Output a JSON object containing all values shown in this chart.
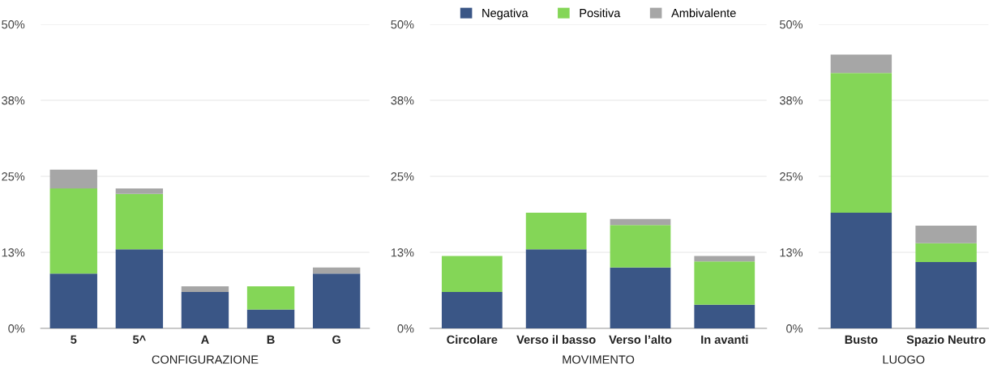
{
  "chart_data": [
    {
      "type": "bar",
      "stacked": true,
      "xlabel": "CONFIGURAZIONE",
      "categories": [
        "5",
        "5^",
        "A",
        "B",
        "G"
      ],
      "series": [
        {
          "color": "#3a5686",
          "values": [
            9.0,
            13.0,
            6.0,
            3.1,
            9.0
          ]
        },
        {
          "color": "#84d657",
          "values": [
            14.0,
            9.1,
            0,
            3.8,
            0
          ]
        },
        {
          "color": "#a6a6a6",
          "values": [
            3.1,
            0.9,
            0.9,
            0,
            1.0
          ]
        }
      ],
      "ylim": [
        0,
        50
      ],
      "yticks": [
        {
          "value": 0,
          "label": "0%"
        },
        {
          "value": 12.5,
          "label": "13%"
        },
        {
          "value": 25,
          "label": "25%"
        },
        {
          "value": 37.5,
          "label": "38%"
        },
        {
          "value": 50,
          "label": "50%"
        }
      ],
      "grid": "y",
      "legend": false
    },
    {
      "type": "bar",
      "stacked": true,
      "xlabel": "MOVIMENTO",
      "categories": [
        "Circolare",
        "Verso il basso",
        "Verso l’alto",
        "In avanti"
      ],
      "series": [
        {
          "name": "Negativa",
          "color": "#3a5686",
          "values": [
            6.0,
            13.0,
            10.0,
            3.9
          ]
        },
        {
          "name": "Positiva",
          "color": "#84d657",
          "values": [
            5.9,
            6.0,
            7.0,
            7.1
          ]
        },
        {
          "name": "Ambivalente",
          "color": "#a6a6a6",
          "values": [
            0,
            0,
            1.0,
            0.9
          ]
        }
      ],
      "ylim": [
        0,
        50
      ],
      "yticks": [
        {
          "value": 0,
          "label": "0%"
        },
        {
          "value": 12.5,
          "label": "13%"
        },
        {
          "value": 25,
          "label": "25%"
        },
        {
          "value": 37.5,
          "label": "38%"
        },
        {
          "value": 50,
          "label": "50%"
        }
      ],
      "grid": "y",
      "legend": "top"
    },
    {
      "type": "bar",
      "stacked": true,
      "xlabel": "LUOGO",
      "categories": [
        "Busto",
        "Spazio Neutro"
      ],
      "series": [
        {
          "color": "#3a5686",
          "values": [
            19.0,
            10.9
          ]
        },
        {
          "color": "#84d657",
          "values": [
            23.0,
            3.1
          ]
        },
        {
          "color": "#a6a6a6",
          "values": [
            3.0,
            2.9
          ]
        }
      ],
      "ylim": [
        0,
        50
      ],
      "yticks": [
        {
          "value": 0,
          "label": "0%"
        },
        {
          "value": 12.5,
          "label": "13%"
        },
        {
          "value": 25,
          "label": "25%"
        },
        {
          "value": 37.5,
          "label": "38%"
        },
        {
          "value": 50,
          "label": "50%"
        }
      ],
      "grid": "y",
      "legend": false
    }
  ]
}
